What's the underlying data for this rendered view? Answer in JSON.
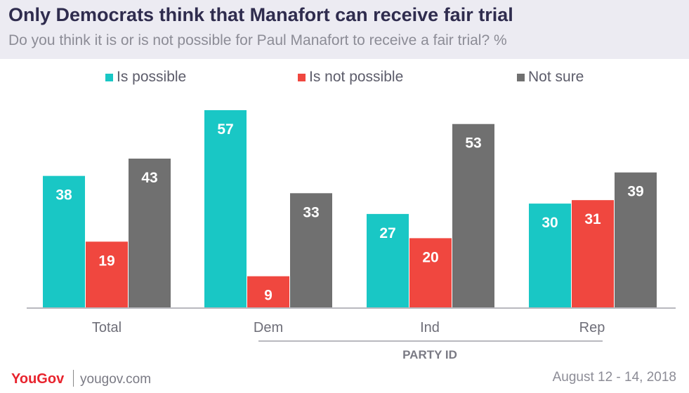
{
  "header": {
    "title": "Only Democrats think that Manafort can receive fair trial",
    "subtitle": "Do you think it is or is not possible for Paul Manafort to receive a fair trial? %"
  },
  "chart_data": {
    "type": "bar",
    "categories": [
      "Total",
      "Dem",
      "Ind",
      "Rep"
    ],
    "series": [
      {
        "name": "Is possible",
        "color": "#19c7c5",
        "values": [
          38,
          57,
          27,
          30
        ]
      },
      {
        "name": "Is not possible",
        "color": "#f0473f",
        "values": [
          19,
          9,
          20,
          31
        ]
      },
      {
        "name": "Not sure",
        "color": "#707070",
        "values": [
          43,
          33,
          53,
          39
        ]
      }
    ],
    "group_label": "PARTY ID",
    "ylim": [
      0,
      60
    ],
    "grid": false,
    "legend_position": "top"
  },
  "footer": {
    "brand": "YouGov",
    "url": "yougov.com",
    "date": "August 12 - 14, 2018"
  }
}
